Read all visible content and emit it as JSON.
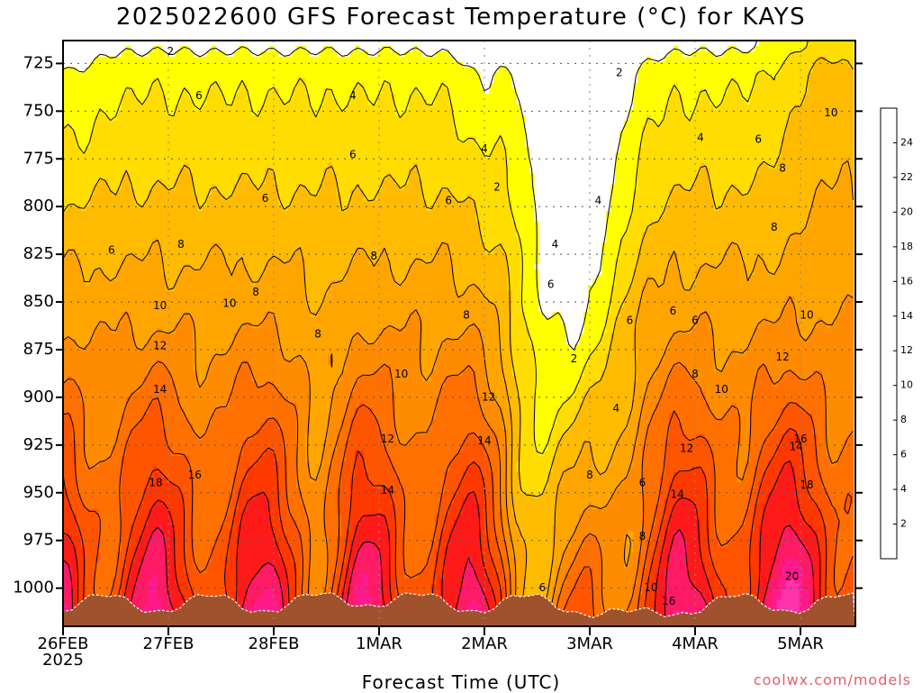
{
  "title": "2025022600 GFS Forecast Temperature (°C) for KAYS",
  "credit": "coolwx.com/models",
  "chart_data": {
    "type": "heatmap",
    "title": "2025022600 GFS Forecast Temperature (°C) for KAYS",
    "xlabel": "Forecast Time (UTC)",
    "x_ticks": [
      "26FEB",
      "27FEB",
      "28FEB",
      "1MAR",
      "2MAR",
      "3MAR",
      "4MAR",
      "5MAR"
    ],
    "x_start_year": "2025",
    "y_ticks": [
      725,
      750,
      775,
      800,
      825,
      850,
      875,
      900,
      925,
      950,
      975,
      1000
    ],
    "y_range": [
      713,
      1020
    ],
    "colorbar": {
      "ticks": [
        2,
        4,
        6,
        8,
        10,
        12,
        14,
        16,
        18,
        20,
        22,
        24
      ],
      "bands": [
        {
          "min": 0,
          "color": "#ffffff"
        },
        {
          "min": 2,
          "color": "#ffff00"
        },
        {
          "min": 4,
          "color": "#ffdd00"
        },
        {
          "min": 6,
          "color": "#ffbb00"
        },
        {
          "min": 8,
          "color": "#ffa500"
        },
        {
          "min": 10,
          "color": "#ff8c00"
        },
        {
          "min": 12,
          "color": "#ff7000"
        },
        {
          "min": 14,
          "color": "#ff5500"
        },
        {
          "min": 16,
          "color": "#ff3800"
        },
        {
          "min": 18,
          "color": "#ff1a1a"
        },
        {
          "min": 20,
          "color": "#ff1a66"
        },
        {
          "min": 22,
          "color": "#ff1a8c"
        },
        {
          "min": 24,
          "color": "#ff33aa"
        }
      ]
    },
    "ground_color": "#a0522d",
    "grid": true,
    "contour_labels": [
      {
        "v": "2",
        "t": 1.02,
        "p": 719
      },
      {
        "v": "2",
        "t": 5.28,
        "p": 730
      },
      {
        "v": "2",
        "t": 4.12,
        "p": 790
      },
      {
        "v": "2",
        "t": 4.85,
        "p": 880
      },
      {
        "v": "4",
        "t": 2.75,
        "p": 742
      },
      {
        "v": "4",
        "t": 4.0,
        "p": 770
      },
      {
        "v": "4",
        "t": 5.08,
        "p": 797
      },
      {
        "v": "4",
        "t": 4.67,
        "p": 820
      },
      {
        "v": "4",
        "t": 5.25,
        "p": 906
      },
      {
        "v": "4",
        "t": 6.05,
        "p": 764
      },
      {
        "v": "6",
        "t": 1.29,
        "p": 742
      },
      {
        "v": "6",
        "t": 2.75,
        "p": 773
      },
      {
        "v": "6",
        "t": 0.46,
        "p": 823
      },
      {
        "v": "6",
        "t": 1.92,
        "p": 796
      },
      {
        "v": "6",
        "t": 3.66,
        "p": 797
      },
      {
        "v": "6",
        "t": 4.63,
        "p": 841
      },
      {
        "v": "6",
        "t": 5.38,
        "p": 860
      },
      {
        "v": "6",
        "t": 5.79,
        "p": 855
      },
      {
        "v": "6",
        "t": 6.0,
        "p": 860
      },
      {
        "v": "6",
        "t": 6.6,
        "p": 765
      },
      {
        "v": "6",
        "t": 4.55,
        "p": 1000
      },
      {
        "v": "6",
        "t": 5.5,
        "p": 945
      },
      {
        "v": "8",
        "t": 1.12,
        "p": 820
      },
      {
        "v": "8",
        "t": 1.83,
        "p": 845
      },
      {
        "v": "8",
        "t": 2.42,
        "p": 867
      },
      {
        "v": "8",
        "t": 2.95,
        "p": 826
      },
      {
        "v": "8",
        "t": 3.83,
        "p": 857
      },
      {
        "v": "8",
        "t": 6.0,
        "p": 888
      },
      {
        "v": "8",
        "t": 6.83,
        "p": 780
      },
      {
        "v": "8",
        "t": 6.75,
        "p": 811
      },
      {
        "v": "8",
        "t": 5.0,
        "p": 941
      },
      {
        "v": "8",
        "t": 5.5,
        "p": 973
      },
      {
        "v": "10",
        "t": 0.92,
        "p": 852
      },
      {
        "v": "10",
        "t": 1.58,
        "p": 851
      },
      {
        "v": "10",
        "t": 3.21,
        "p": 888
      },
      {
        "v": "10",
        "t": 6.25,
        "p": 896
      },
      {
        "v": "10",
        "t": 7.06,
        "p": 857
      },
      {
        "v": "10",
        "t": 7.29,
        "p": 751
      },
      {
        "v": "10",
        "t": 5.58,
        "p": 1000
      },
      {
        "v": "12",
        "t": 0.92,
        "p": 873
      },
      {
        "v": "12",
        "t": 3.08,
        "p": 922
      },
      {
        "v": "12",
        "t": 4.04,
        "p": 900
      },
      {
        "v": "12",
        "t": 5.92,
        "p": 927
      },
      {
        "v": "12",
        "t": 6.83,
        "p": 879
      },
      {
        "v": "14",
        "t": 0.92,
        "p": 896
      },
      {
        "v": "14",
        "t": 3.08,
        "p": 949
      },
      {
        "v": "14",
        "t": 4.0,
        "p": 923
      },
      {
        "v": "14",
        "t": 6.96,
        "p": 926
      },
      {
        "v": "14",
        "t": 5.83,
        "p": 951
      },
      {
        "v": "16",
        "t": 1.25,
        "p": 941
      },
      {
        "v": "16",
        "t": 7.0,
        "p": 922
      },
      {
        "v": "16",
        "t": 5.75,
        "p": 1007
      },
      {
        "v": "18",
        "t": 0.88,
        "p": 945
      },
      {
        "v": "18",
        "t": 7.06,
        "p": 946
      },
      {
        "v": "20",
        "t": 6.92,
        "p": 994
      }
    ]
  }
}
